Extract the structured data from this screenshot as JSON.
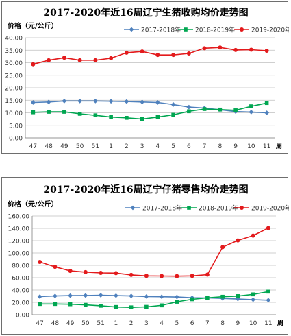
{
  "chart_data": [
    {
      "type": "line",
      "title": "2017-2020年近16周辽宁生猪收购均价走势图",
      "ylabel": "价格（元/公斤）",
      "xlabel": "周",
      "ylim": [
        0,
        40
      ],
      "yticks": [
        "0.00",
        "5.00",
        "10.00",
        "15.00",
        "20.00",
        "25.00",
        "30.00",
        "35.00",
        "40.00"
      ],
      "categories": [
        "47",
        "48",
        "49",
        "50",
        "51",
        "1",
        "2",
        "3",
        "4",
        "5",
        "6",
        "7",
        "8",
        "9",
        "10",
        "11"
      ],
      "legend_position": "top",
      "grid": true,
      "series": [
        {
          "name": "2017-2018年",
          "color": "#4f81bd",
          "marker": "diamond",
          "values": [
            14.1,
            14.3,
            14.7,
            14.7,
            14.7,
            14.6,
            14.5,
            14.3,
            14.1,
            13.3,
            12.3,
            11.9,
            11.2,
            10.5,
            10.3,
            10.0
          ]
        },
        {
          "name": "2018-2019年",
          "color": "#00a651",
          "marker": "square",
          "values": [
            10.2,
            10.4,
            10.4,
            9.6,
            9.0,
            8.3,
            8.0,
            7.5,
            8.3,
            9.2,
            10.6,
            11.5,
            11.3,
            11.0,
            12.6,
            13.9
          ]
        },
        {
          "name": "2019-2020年",
          "color": "#e31a1c",
          "marker": "circle",
          "values": [
            29.4,
            31.0,
            32.0,
            31.0,
            31.0,
            31.8,
            34.0,
            34.5,
            33.1,
            33.1,
            33.7,
            35.8,
            36.1,
            35.1,
            35.2,
            34.8
          ]
        }
      ]
    },
    {
      "type": "line",
      "title": "2017-2020年近16周辽宁仔猪零售均价走势图",
      "ylabel": "价格（元/公斤）",
      "xlabel": "周",
      "ylim": [
        0,
        160
      ],
      "yticks": [
        "0.00",
        "20.00",
        "40.00",
        "60.00",
        "80.00",
        "100.00",
        "120.00",
        "140.00",
        "160.00"
      ],
      "categories": [
        "47",
        "48",
        "49",
        "50",
        "51",
        "1",
        "2",
        "3",
        "4",
        "5",
        "6",
        "7",
        "8",
        "9",
        "10",
        "11"
      ],
      "legend_position": "top",
      "grid": true,
      "series": [
        {
          "name": "2017-2018年",
          "color": "#4f81bd",
          "marker": "diamond",
          "values": [
            29.4,
            30.4,
            31.0,
            31.2,
            31.6,
            31.0,
            30.4,
            29.6,
            29.2,
            28.8,
            27.6,
            27.2,
            26.4,
            25.4,
            24.4,
            23.6
          ]
        },
        {
          "name": "2018-2019年",
          "color": "#00a651",
          "marker": "square",
          "values": [
            17.4,
            17.4,
            17.0,
            16.0,
            14.6,
            12.6,
            12.0,
            12.8,
            15.2,
            21.0,
            25.0,
            27.4,
            29.2,
            30.2,
            33.0,
            37.4
          ]
        },
        {
          "name": "2019-2020年",
          "color": "#e31a1c",
          "marker": "circle",
          "values": [
            85.6,
            77.6,
            71.0,
            69.0,
            67.8,
            67.4,
            64.6,
            63.0,
            62.8,
            62.6,
            63.0,
            65.0,
            109.6,
            120.4,
            128.2,
            140.6
          ]
        }
      ]
    }
  ]
}
